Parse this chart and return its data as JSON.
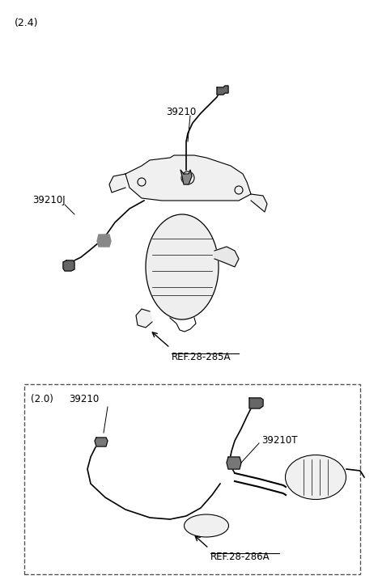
{
  "bg_color": "#ffffff",
  "line_color": "#000000",
  "title_24": "(2.4)",
  "title_20": "(2.0)",
  "label_39210": "39210",
  "label_39210J": "39210J",
  "label_39210T": "39210T",
  "ref_285A": "REF.28-285A",
  "ref_286A": "REF.28-286A",
  "fig_width": 4.67,
  "fig_height": 7.27,
  "dpi": 100
}
